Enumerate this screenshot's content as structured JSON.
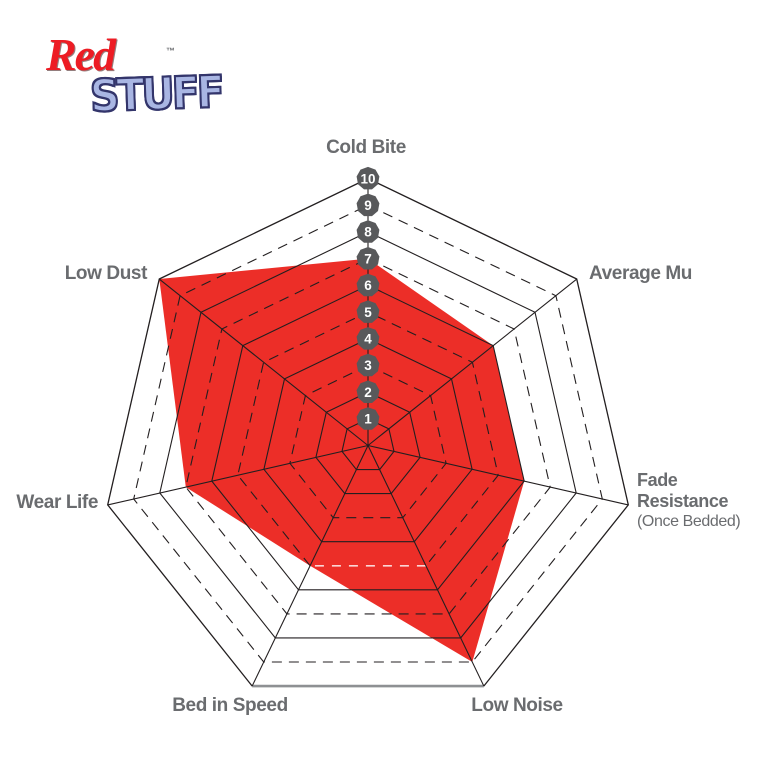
{
  "logo": {
    "red": "Red",
    "stuff": "STUFF",
    "trademark": "™"
  },
  "chart_data": {
    "type": "radar",
    "title": "",
    "axes": [
      {
        "label": "Cold Bite",
        "value": 7
      },
      {
        "label": "Average Mu",
        "value": 6
      },
      {
        "label": "Fade Resistance",
        "sublabel": "(Once Bedded)",
        "value": 6
      },
      {
        "label": "Low Noise",
        "value": 9
      },
      {
        "label": "Bed in Speed",
        "value": 5
      },
      {
        "label": "Wear Life",
        "value": 7
      },
      {
        "label": "Low Dust",
        "value": 10
      }
    ],
    "scale": {
      "min": 0,
      "max": 10,
      "ticks": [
        "1",
        "2",
        "3",
        "4",
        "5",
        "6",
        "7",
        "8",
        "9",
        "10"
      ]
    },
    "grid": {
      "rings": 10,
      "dashed_rings": [
        3,
        5,
        7,
        9
      ],
      "solid_rings": [
        1,
        2,
        4,
        6,
        8,
        10
      ],
      "legend": "none"
    },
    "colors": {
      "fill": "#EC2E28",
      "grid_line": "#231F20",
      "badge_bg": "#58595B",
      "badge_text": "#FFFFFF",
      "label_text": "#6A6C6F",
      "bottom_edge": "#8E9093",
      "ring5_bottom_dash": "rgba(255,255,255,0.8)"
    }
  }
}
